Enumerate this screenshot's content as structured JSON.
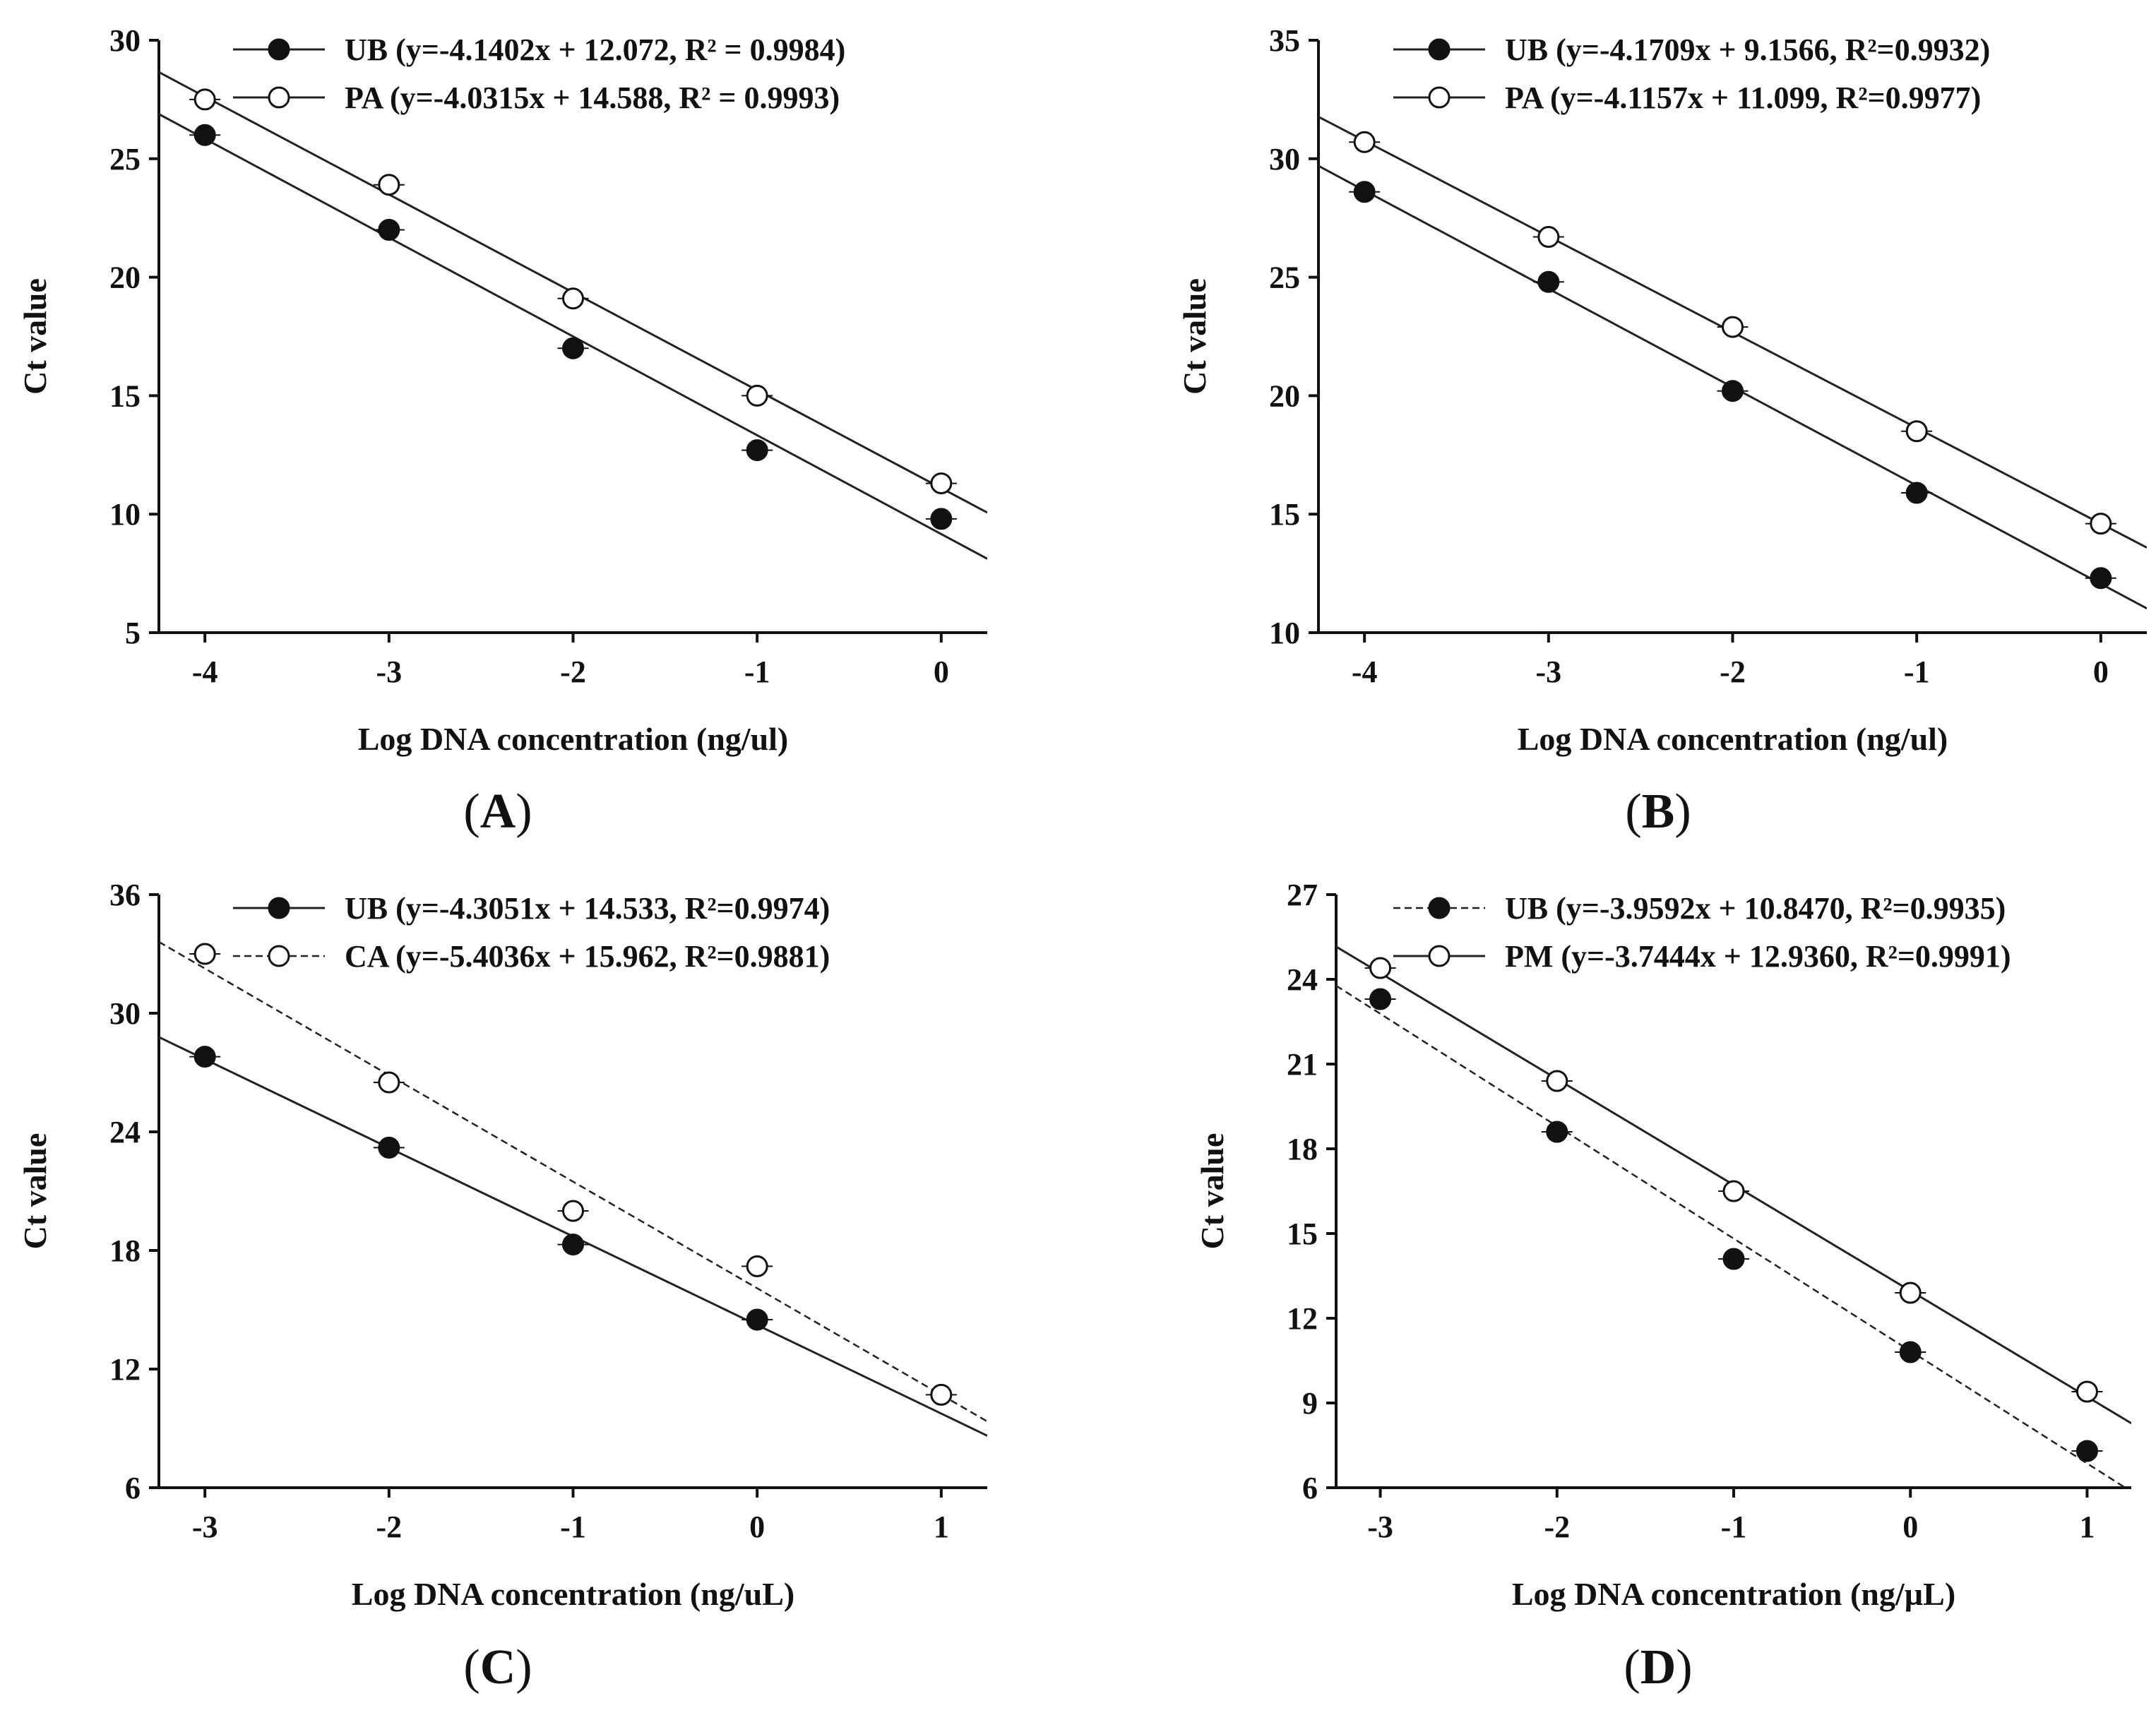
{
  "figure": {
    "panels": [
      {
        "id": "A",
        "label": "A",
        "chart_data": {
          "type": "scatter",
          "title": "",
          "xlabel": "Log DNA concentration (ng/ul)",
          "ylabel": "Ct value",
          "xlim": [
            -4.25,
            0.25
          ],
          "ylim": [
            5,
            30
          ],
          "xticks": [
            "-4",
            "-3",
            "-2",
            "-1",
            "0"
          ],
          "yticks": [
            "5",
            "10",
            "15",
            "20",
            "25",
            "30"
          ],
          "series": [
            {
              "name": "UB",
              "legend": "UB (y=-4.1402x + 12.072, R² = 0.9984)",
              "marker": "filled",
              "line": "solid",
              "slope": -4.1402,
              "intercept": 12.072,
              "r2": 0.9984,
              "x": [
                -4,
                -3,
                -2,
                -1,
                0
              ],
              "values": [
                26.0,
                22.0,
                17.0,
                12.7,
                9.8
              ]
            },
            {
              "name": "PA",
              "legend": "PA (y=-4.0315x + 14.588, R² = 0.9993)",
              "marker": "open",
              "line": "solid",
              "slope": -4.0315,
              "intercept": 14.588,
              "r2": 0.9993,
              "x": [
                -4,
                -3,
                -2,
                -1,
                0
              ],
              "values": [
                27.5,
                23.9,
                19.1,
                15.0,
                11.3
              ]
            }
          ]
        }
      },
      {
        "id": "B",
        "label": "B",
        "chart_data": {
          "type": "scatter",
          "title": "",
          "xlabel": "Log DNA concentration (ng/ul)",
          "ylabel": "Ct value",
          "xlim": [
            -4.25,
            0.25
          ],
          "ylim": [
            10,
            35
          ],
          "xticks": [
            "-4",
            "-3",
            "-2",
            "-1",
            "0"
          ],
          "yticks": [
            "10",
            "15",
            "20",
            "25",
            "30",
            "35"
          ],
          "series": [
            {
              "name": "UB",
              "legend": "UB (y=-4.1709x + 9.1566, R²=0.9932)",
              "marker": "filled",
              "line": "solid",
              "slope": -4.1709,
              "intercept": 9.1566,
              "r2": 0.9932,
              "x": [
                -4,
                -3,
                -2,
                -1,
                0
              ],
              "values": [
                28.6,
                24.8,
                20.2,
                15.9,
                12.3
              ]
            },
            {
              "name": "PA",
              "legend": "PA (y=-4.1157x + 11.099, R²=0.9977)",
              "marker": "open",
              "line": "solid",
              "slope": -4.1157,
              "intercept": 11.099,
              "r2": 0.9977,
              "x": [
                -4,
                -3,
                -2,
                -1,
                0
              ],
              "values": [
                30.7,
                26.7,
                22.9,
                18.5,
                14.6
              ]
            }
          ]
        }
      },
      {
        "id": "C",
        "label": "C",
        "chart_data": {
          "type": "scatter",
          "title": "",
          "xlabel": "Log DNA concentration (ng/uL)",
          "ylabel": "Ct value",
          "xlim": [
            -3.25,
            1.25
          ],
          "ylim": [
            6,
            36
          ],
          "xticks": [
            "-3",
            "-2",
            "-1",
            "0",
            "1"
          ],
          "yticks": [
            "6",
            "12",
            "18",
            "24",
            "30",
            "36"
          ],
          "series": [
            {
              "name": "UB",
              "legend": "UB (y=-4.3051x + 14.533, R²=0.9974)",
              "marker": "filled",
              "line": "solid",
              "slope": -4.3051,
              "intercept": 14.533,
              "r2": 0.9974,
              "x": [
                -3,
                -2,
                -1,
                0
              ],
              "values": [
                27.8,
                23.2,
                18.3,
                14.5
              ]
            },
            {
              "name": "CA",
              "legend": "CA (y=-5.4036x + 15.962, R²=0.9881)",
              "marker": "open",
              "line": "dashed",
              "slope": -5.4036,
              "intercept": 15.962,
              "r2": 0.9881,
              "x": [
                -3,
                -2,
                -1,
                0,
                1
              ],
              "values": [
                33.0,
                26.5,
                20.0,
                17.2,
                10.7
              ]
            }
          ]
        }
      },
      {
        "id": "D",
        "label": "D",
        "chart_data": {
          "type": "scatter",
          "title": "",
          "xlabel": "Log DNA concentration (ng/µL)",
          "ylabel": "Ct value",
          "xlim": [
            -3.25,
            1.25
          ],
          "ylim": [
            6,
            27
          ],
          "xticks": [
            "-3",
            "-2",
            "-1",
            "0",
            "1"
          ],
          "yticks": [
            "6",
            "9",
            "12",
            "15",
            "18",
            "21",
            "24",
            "27"
          ],
          "series": [
            {
              "name": "UB",
              "legend": "UB (y=-3.9592x + 10.8470, R²=0.9935)",
              "marker": "filled",
              "line": "dashed",
              "slope": -3.9592,
              "intercept": 10.847,
              "r2": 0.9935,
              "x": [
                -3,
                -2,
                -1,
                0,
                1
              ],
              "values": [
                23.3,
                18.6,
                14.1,
                10.8,
                7.3
              ]
            },
            {
              "name": "PM",
              "legend": "PM (y=-3.7444x + 12.9360, R²=0.9991)",
              "marker": "open",
              "line": "solid",
              "slope": -3.7444,
              "intercept": 12.936,
              "r2": 0.9991,
              "x": [
                -3,
                -2,
                -1,
                0,
                1
              ],
              "values": [
                24.4,
                20.4,
                16.5,
                12.9,
                9.4
              ]
            }
          ]
        }
      }
    ]
  }
}
